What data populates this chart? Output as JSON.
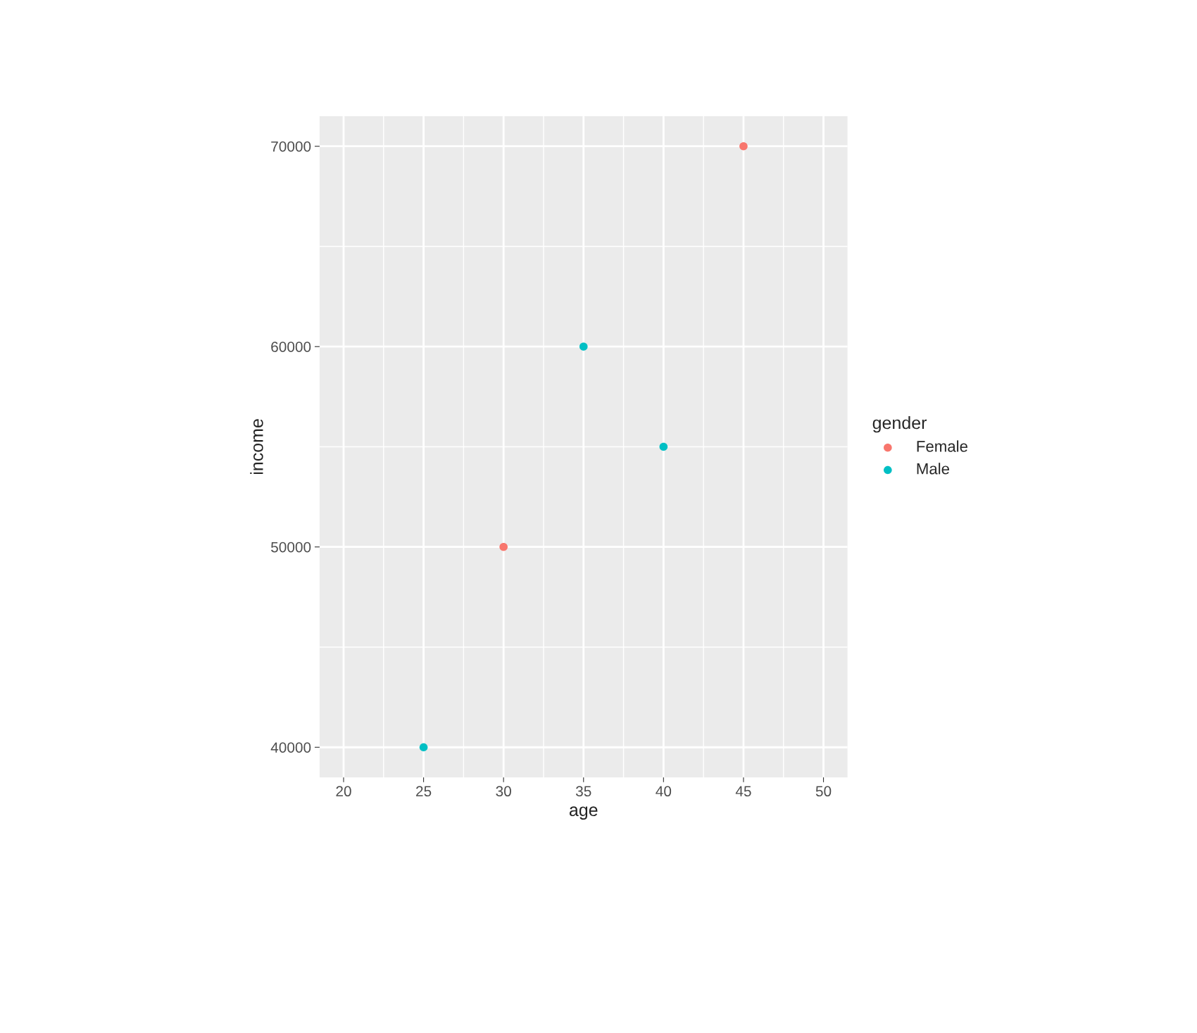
{
  "chart_data": {
    "type": "scatter",
    "xlabel": "age",
    "ylabel": "income",
    "legend_title": "gender",
    "series": [
      {
        "name": "Female",
        "color": "#f8766d",
        "x": [
          30,
          45
        ],
        "values": [
          50000,
          70000
        ]
      },
      {
        "name": "Male",
        "color": "#00bfc4",
        "x": [
          25,
          35,
          40
        ],
        "values": [
          40000,
          60000,
          55000
        ]
      }
    ],
    "xlim": [
      18.5,
      51.5
    ],
    "xticks": [
      20,
      25,
      30,
      35,
      40,
      45,
      50
    ],
    "ylim": [
      38500,
      71500
    ],
    "yticks": [
      40000,
      50000,
      60000,
      70000
    ],
    "grid": true,
    "legend": "right",
    "marker": "circle"
  }
}
